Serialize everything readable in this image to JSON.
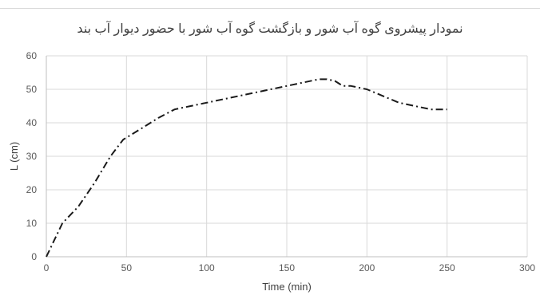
{
  "chart_data": {
    "type": "line",
    "title": "نمودار پیشروی گوه آب شور و بازگشت گوه آب شور با حضور دیوار آب بند",
    "xlabel": "Time (min)",
    "ylabel": "L (cm)",
    "xlim": [
      0,
      300
    ],
    "ylim": [
      0,
      60
    ],
    "x_ticks": [
      0,
      50,
      100,
      150,
      200,
      250,
      300
    ],
    "y_ticks": [
      0,
      10,
      20,
      30,
      40,
      50,
      60
    ],
    "grid": true,
    "legend": "none",
    "series": [
      {
        "color": "#1a1a1a",
        "line_style": "dash-dot",
        "x": [
          0,
          10,
          20,
          30,
          40,
          48,
          60,
          70,
          80,
          90,
          100,
          120,
          140,
          160,
          170,
          175,
          180,
          185,
          190,
          200,
          210,
          220,
          230,
          240,
          250
        ],
        "y": [
          0,
          10,
          15,
          22,
          30,
          35,
          38.5,
          41.5,
          44,
          45,
          46,
          48,
          50,
          52,
          53,
          53,
          52.5,
          51,
          51,
          50,
          48,
          46,
          45,
          44,
          44
        ]
      }
    ]
  }
}
